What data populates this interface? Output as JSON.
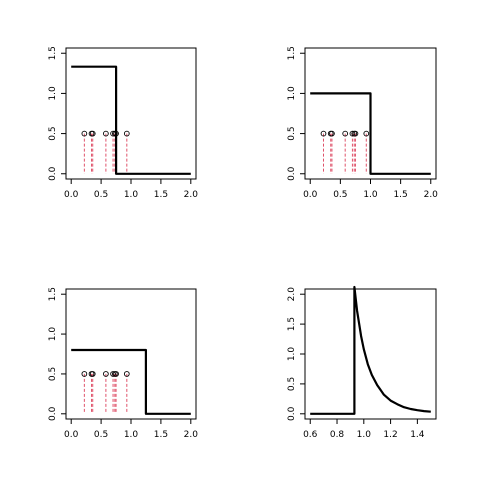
{
  "chart_data": [
    {
      "type": "line",
      "panel": "top-left",
      "xlim": [
        0,
        2
      ],
      "ylim": [
        0,
        1.5
      ],
      "xticks": [
        "0.0",
        "0.5",
        "1.0",
        "1.5",
        "2.0"
      ],
      "yticks": [
        "0.0",
        "0.5",
        "1.0",
        "1.5"
      ],
      "x": [
        0.0,
        0.75,
        0.75,
        2.0
      ],
      "y": [
        1.333,
        1.333,
        0.0,
        0.0
      ],
      "points": {
        "x": [
          0.22,
          0.34,
          0.36,
          0.58,
          0.7,
          0.73,
          0.75,
          0.93
        ],
        "y": 0.5
      }
    },
    {
      "type": "line",
      "panel": "top-right",
      "xlim": [
        0,
        2
      ],
      "ylim": [
        0,
        1.5
      ],
      "xticks": [
        "0.0",
        "0.5",
        "1.0",
        "1.5",
        "2.0"
      ],
      "yticks": [
        "0.0",
        "0.5",
        "1.0",
        "1.5"
      ],
      "x": [
        0.0,
        1.0,
        1.0,
        2.0
      ],
      "y": [
        1.0,
        1.0,
        0.0,
        0.0
      ],
      "points": {
        "x": [
          0.22,
          0.34,
          0.36,
          0.58,
          0.7,
          0.73,
          0.75,
          0.93
        ],
        "y": 0.5
      }
    },
    {
      "type": "line",
      "panel": "bottom-left",
      "xlim": [
        0,
        2
      ],
      "ylim": [
        0,
        1.5
      ],
      "xticks": [
        "0.0",
        "0.5",
        "1.0",
        "1.5",
        "2.0"
      ],
      "yticks": [
        "0.0",
        "0.5",
        "1.0",
        "1.5"
      ],
      "x": [
        0.0,
        1.25,
        1.25,
        2.0
      ],
      "y": [
        0.8,
        0.8,
        0.0,
        0.0
      ],
      "points": {
        "x": [
          0.22,
          0.34,
          0.36,
          0.58,
          0.7,
          0.73,
          0.75,
          0.93
        ],
        "y": 0.5
      }
    },
    {
      "type": "line",
      "panel": "bottom-right",
      "xlim": [
        0.6,
        1.5
      ],
      "ylim": [
        0,
        2.0
      ],
      "xticks": [
        "0.6",
        "0.8",
        "1.0",
        "1.2",
        "1.4"
      ],
      "yticks": [
        "0.0",
        "0.5",
        "1.0",
        "1.5",
        "2.0"
      ],
      "x": [
        0.6,
        0.93,
        0.93,
        0.95,
        0.98,
        1.0,
        1.03,
        1.06,
        1.1,
        1.15,
        1.2,
        1.25,
        1.3,
        1.35,
        1.4,
        1.45,
        1.5
      ],
      "y": [
        0.0,
        0.0,
        2.12,
        1.72,
        1.3,
        1.08,
        0.83,
        0.65,
        0.48,
        0.32,
        0.22,
        0.16,
        0.11,
        0.08,
        0.06,
        0.045,
        0.035
      ]
    }
  ]
}
